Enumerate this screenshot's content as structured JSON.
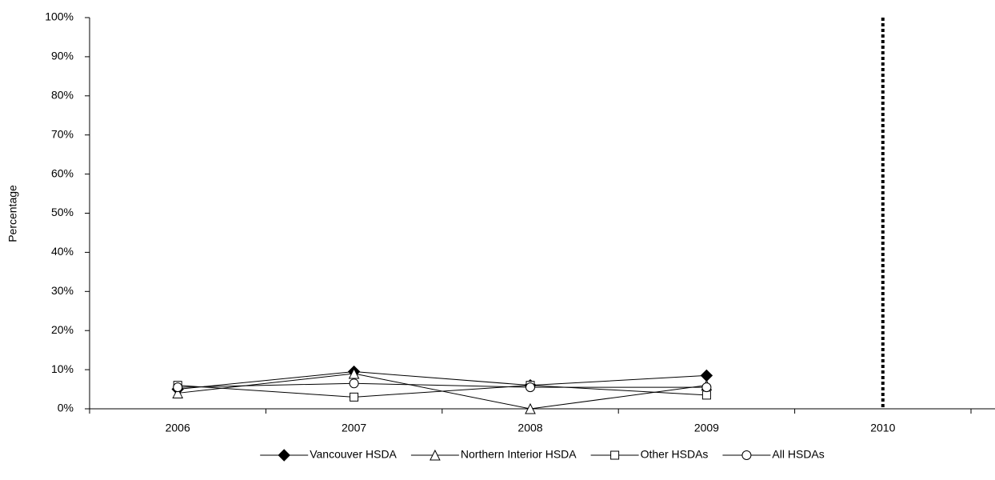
{
  "chart_data": {
    "type": "line",
    "y_label": "Percentage",
    "categories": [
      "2006",
      "2007",
      "2008",
      "2009",
      "2010"
    ],
    "series": [
      {
        "name": "Vancouver HSDA",
        "color": "#000000",
        "marker": "diamond",
        "values": [
          5.0,
          9.5,
          6.0,
          8.5,
          null
        ]
      },
      {
        "name": "Northern Interior HSDA",
        "color": "#000000",
        "marker": "triangle",
        "values": [
          4.0,
          9.0,
          0,
          6.0,
          null
        ]
      },
      {
        "name": "Other HSDAs",
        "color": "#000000",
        "marker": "square",
        "values": [
          6.0,
          3.0,
          6.0,
          3.5,
          null
        ]
      },
      {
        "name": "All HSDAs",
        "color": "#000000",
        "marker": "circle",
        "values": [
          5.5,
          6.5,
          5.5,
          5.5,
          null
        ]
      }
    ],
    "ylim": [
      0,
      100
    ],
    "yticks": [
      {
        "value": 0,
        "label": "0%"
      },
      {
        "value": 10,
        "label": "10%"
      },
      {
        "value": 20,
        "label": "20%"
      },
      {
        "value": 30,
        "label": "30%"
      },
      {
        "value": 40,
        "label": "40%"
      },
      {
        "value": 50,
        "label": "50%"
      },
      {
        "value": 60,
        "label": "60%"
      },
      {
        "value": 70,
        "label": "70%"
      },
      {
        "value": 80,
        "label": "80%"
      },
      {
        "value": 90,
        "label": "90%"
      },
      {
        "value": 100,
        "label": "100%"
      }
    ],
    "legend": "bottom"
  }
}
